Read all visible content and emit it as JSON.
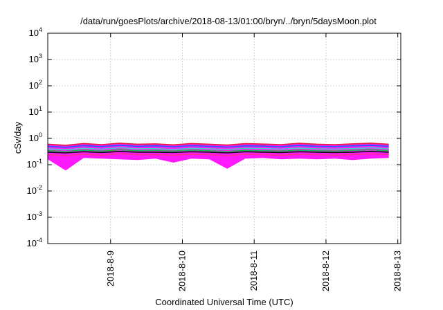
{
  "chart_data": {
    "type": "area",
    "title": "/data/run/goesPlots/archive/2018-08-13/01:00/bryn/../bryn/5daysMoon.plot",
    "xlabel": "Coordinated Universal Time (UTC)",
    "ylabel": "cSv/day",
    "yscale": "log",
    "ylim": [
      0.0001,
      10000
    ],
    "xlim": [
      "2018-08-08 03:00",
      "2018-08-13 01:00"
    ],
    "y_ticks": [
      {
        "base": "10",
        "exp": "-4"
      },
      {
        "base": "10",
        "exp": "-3"
      },
      {
        "base": "10",
        "exp": "-2"
      },
      {
        "base": "10",
        "exp": "-1"
      },
      {
        "base": "10",
        "exp": "0"
      },
      {
        "base": "10",
        "exp": "1"
      },
      {
        "base": "10",
        "exp": "2"
      },
      {
        "base": "10",
        "exp": "3"
      },
      {
        "base": "10",
        "exp": "4"
      }
    ],
    "x_ticks": [
      "2018-8-9",
      "2018-8-10",
      "2018-8-11",
      "2018-8-12",
      "2018-8-13"
    ],
    "grid": true,
    "legend": "none",
    "colors": {
      "band_fill": "#ff00ff",
      "series": [
        "#e8193c",
        "#1f5cff",
        "#3bd4c8",
        "#22b050",
        "#111111",
        "#ff2a90"
      ]
    },
    "series": [
      {
        "values": [
          0.6,
          0.55,
          0.64,
          0.58,
          0.66,
          0.6,
          0.62,
          0.57,
          0.64,
          0.6,
          0.56,
          0.63,
          0.61,
          0.58,
          0.65,
          0.6,
          0.58,
          0.62,
          0.66,
          0.6
        ]
      },
      {
        "values": [
          0.5,
          0.46,
          0.53,
          0.49,
          0.55,
          0.5,
          0.52,
          0.48,
          0.53,
          0.5,
          0.47,
          0.52,
          0.51,
          0.48,
          0.54,
          0.5,
          0.49,
          0.52,
          0.55,
          0.5
        ]
      },
      {
        "values": [
          0.4,
          0.37,
          0.42,
          0.39,
          0.44,
          0.4,
          0.41,
          0.38,
          0.42,
          0.4,
          0.38,
          0.42,
          0.41,
          0.39,
          0.43,
          0.4,
          0.39,
          0.41,
          0.44,
          0.4
        ]
      },
      {
        "values": [
          0.34,
          0.32,
          0.36,
          0.33,
          0.37,
          0.34,
          0.35,
          0.33,
          0.36,
          0.34,
          0.32,
          0.35,
          0.34,
          0.33,
          0.36,
          0.34,
          0.33,
          0.35,
          0.37,
          0.34
        ]
      },
      {
        "values": [
          0.3,
          0.28,
          0.31,
          0.29,
          0.32,
          0.3,
          0.3,
          0.29,
          0.31,
          0.3,
          0.28,
          0.31,
          0.3,
          0.29,
          0.31,
          0.3,
          0.29,
          0.3,
          0.32,
          0.3
        ]
      },
      {
        "values": [
          0.24,
          0.22,
          0.25,
          0.23,
          0.26,
          0.24,
          0.24,
          0.23,
          0.25,
          0.24,
          0.22,
          0.25,
          0.24,
          0.23,
          0.25,
          0.24,
          0.23,
          0.24,
          0.26,
          0.24
        ]
      }
    ],
    "x": [
      "2018-08-08 03:00",
      "2018-08-08 09:00",
      "2018-08-08 15:00",
      "2018-08-08 21:00",
      "2018-08-09 03:00",
      "2018-08-09 09:00",
      "2018-08-09 15:00",
      "2018-08-09 21:00",
      "2018-08-10 03:00",
      "2018-08-10 09:00",
      "2018-08-10 15:00",
      "2018-08-10 21:00",
      "2018-08-11 03:00",
      "2018-08-11 09:00",
      "2018-08-11 15:00",
      "2018-08-11 21:00",
      "2018-08-12 03:00",
      "2018-08-12 09:00",
      "2018-08-12 15:00",
      "2018-08-12 21:00"
    ],
    "band_lower": [
      0.16,
      0.06,
      0.18,
      0.17,
      0.16,
      0.15,
      0.17,
      0.12,
      0.17,
      0.16,
      0.07,
      0.17,
      0.18,
      0.16,
      0.17,
      0.16,
      0.17,
      0.15,
      0.17,
      0.18
    ]
  }
}
